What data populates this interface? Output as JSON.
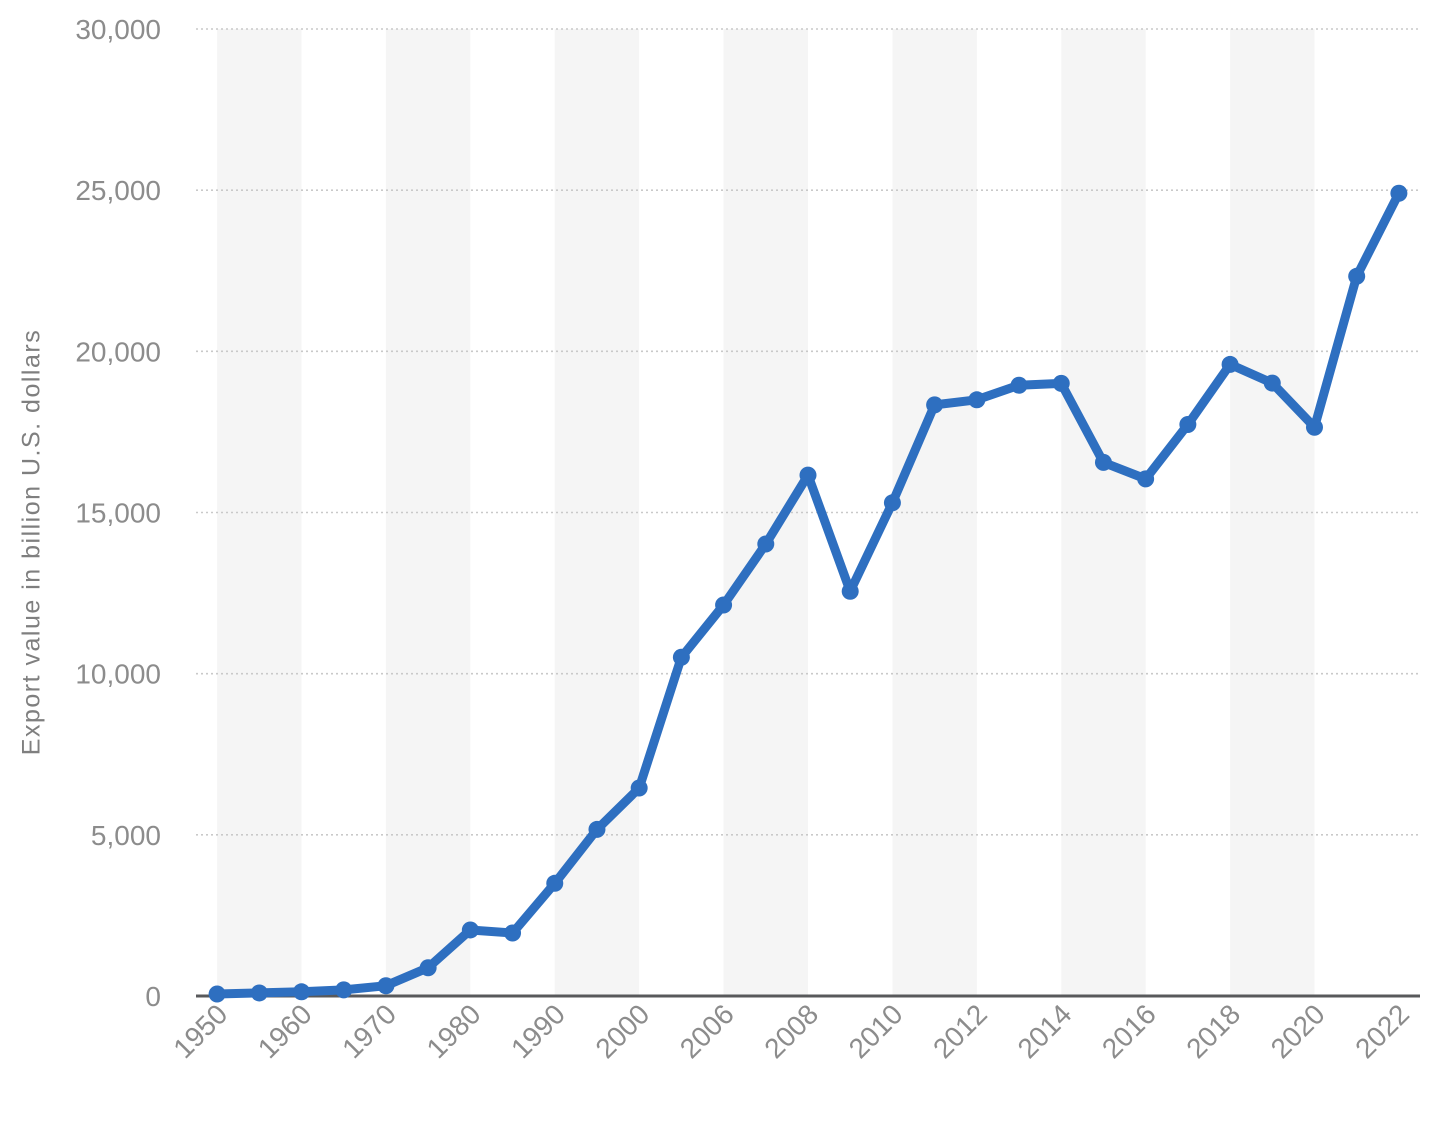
{
  "page": {
    "background": "#ffffff"
  },
  "chart_data": {
    "type": "line",
    "title": "",
    "xlabel": "",
    "ylabel": "Export value in billion U.S. dollars",
    "ylim": [
      0,
      30000
    ],
    "grid": "horizontal dotted gridlines every 5,000; alternating light vertical plot bands",
    "legend": "none",
    "x": [
      1950,
      1955,
      1960,
      1965,
      1970,
      1975,
      1980,
      1985,
      1990,
      1995,
      2000,
      2005,
      2006,
      2007,
      2008,
      2009,
      2010,
      2011,
      2012,
      2013,
      2014,
      2015,
      2016,
      2017,
      2018,
      2019,
      2020,
      2021,
      2022
    ],
    "series": [
      {
        "name": "Export value in billion U.S. dollars",
        "values": [
          61,
          95,
          130,
          190,
          318,
          877,
          2049,
          1954,
          3496,
          5168,
          6453,
          10509,
          12131,
          14023,
          16160,
          12555,
          15301,
          18338,
          18496,
          18948,
          19005,
          16555,
          16043,
          17731,
          19594,
          19015,
          17645,
          22328,
          24905
        ]
      }
    ],
    "y_ticks": [
      {
        "value": 0,
        "label": "0"
      },
      {
        "value": 5000,
        "label": "5,000"
      },
      {
        "value": 10000,
        "label": "10,000"
      },
      {
        "value": 15000,
        "label": "15,000"
      },
      {
        "value": 20000,
        "label": "20,000"
      },
      {
        "value": 25000,
        "label": "25,000"
      },
      {
        "value": 30000,
        "label": "30,000"
      }
    ],
    "x_tick_labels": [
      "1950",
      "1960",
      "1970",
      "1980",
      "1990",
      "2000",
      "2006",
      "2008",
      "2010",
      "2012",
      "2014",
      "2016",
      "2018",
      "2020",
      "2022"
    ]
  },
  "colors": {
    "line": "#2e6fc0",
    "marker": "#2e6fc0",
    "plot_band": "#f5f5f5",
    "gridline": "#c9c9c9",
    "zero_axis": "#58595b",
    "tick_text": "#8c8c8c",
    "axis_title_text": "#7f7f7f"
  }
}
